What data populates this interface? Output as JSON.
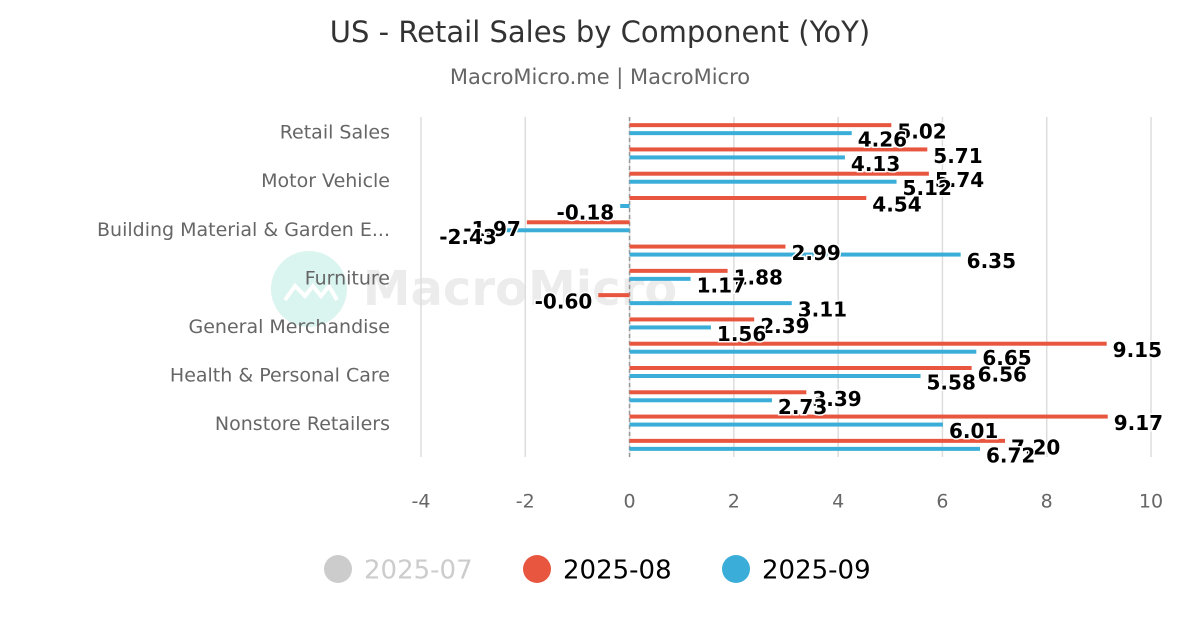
{
  "chart_data": {
    "type": "hbar",
    "title": "US - Retail Sales by Component (YoY)",
    "subtitle": "MacroMicro.me | MacroMicro",
    "watermark": "MacroMicro",
    "categories": [
      "Retail Sales",
      null,
      "Motor Vehicle",
      null,
      "Building Material & Garden E...",
      null,
      "Furniture",
      null,
      "General Merchandise",
      null,
      "Health & Personal Care",
      null,
      "Nonstore Retailers",
      null
    ],
    "series": [
      {
        "name": "2025-07",
        "color": "#cccccc",
        "visible": false,
        "values": [
          null,
          null,
          null,
          null,
          null,
          null,
          null,
          null,
          null,
          null,
          null,
          null,
          null,
          null
        ]
      },
      {
        "name": "2025-08",
        "color": "#e8563f",
        "visible": true,
        "values": [
          5.02,
          5.71,
          5.74,
          4.54,
          -1.97,
          2.99,
          1.88,
          -0.6,
          2.39,
          9.15,
          6.56,
          3.39,
          9.17,
          7.2
        ],
        "value_labels": [
          "5.02",
          "5.71",
          "5.74",
          "4.54",
          "-1.97",
          "2.99",
          "1.88",
          "-0.60",
          "2.39",
          "9.15",
          "6.56",
          "3.39",
          "9.17",
          "7.20"
        ]
      },
      {
        "name": "2025-09",
        "color": "#3aaed8",
        "visible": true,
        "values": [
          4.26,
          4.13,
          5.12,
          -0.18,
          -2.43,
          6.35,
          1.17,
          3.11,
          1.56,
          6.65,
          5.58,
          2.73,
          6.01,
          6.72
        ],
        "value_labels": [
          "4.26",
          "4.13",
          "5.12",
          "-0.18",
          "-2.43",
          "6.35",
          "1.17",
          "3.11",
          "1.56",
          "6.65",
          "5.58",
          "2.73",
          "6.01",
          "6.72"
        ]
      }
    ],
    "xlim": [
      -4,
      10
    ],
    "xticks": [
      -4,
      -2,
      0,
      2,
      4,
      6,
      8,
      10
    ],
    "grid": true
  }
}
